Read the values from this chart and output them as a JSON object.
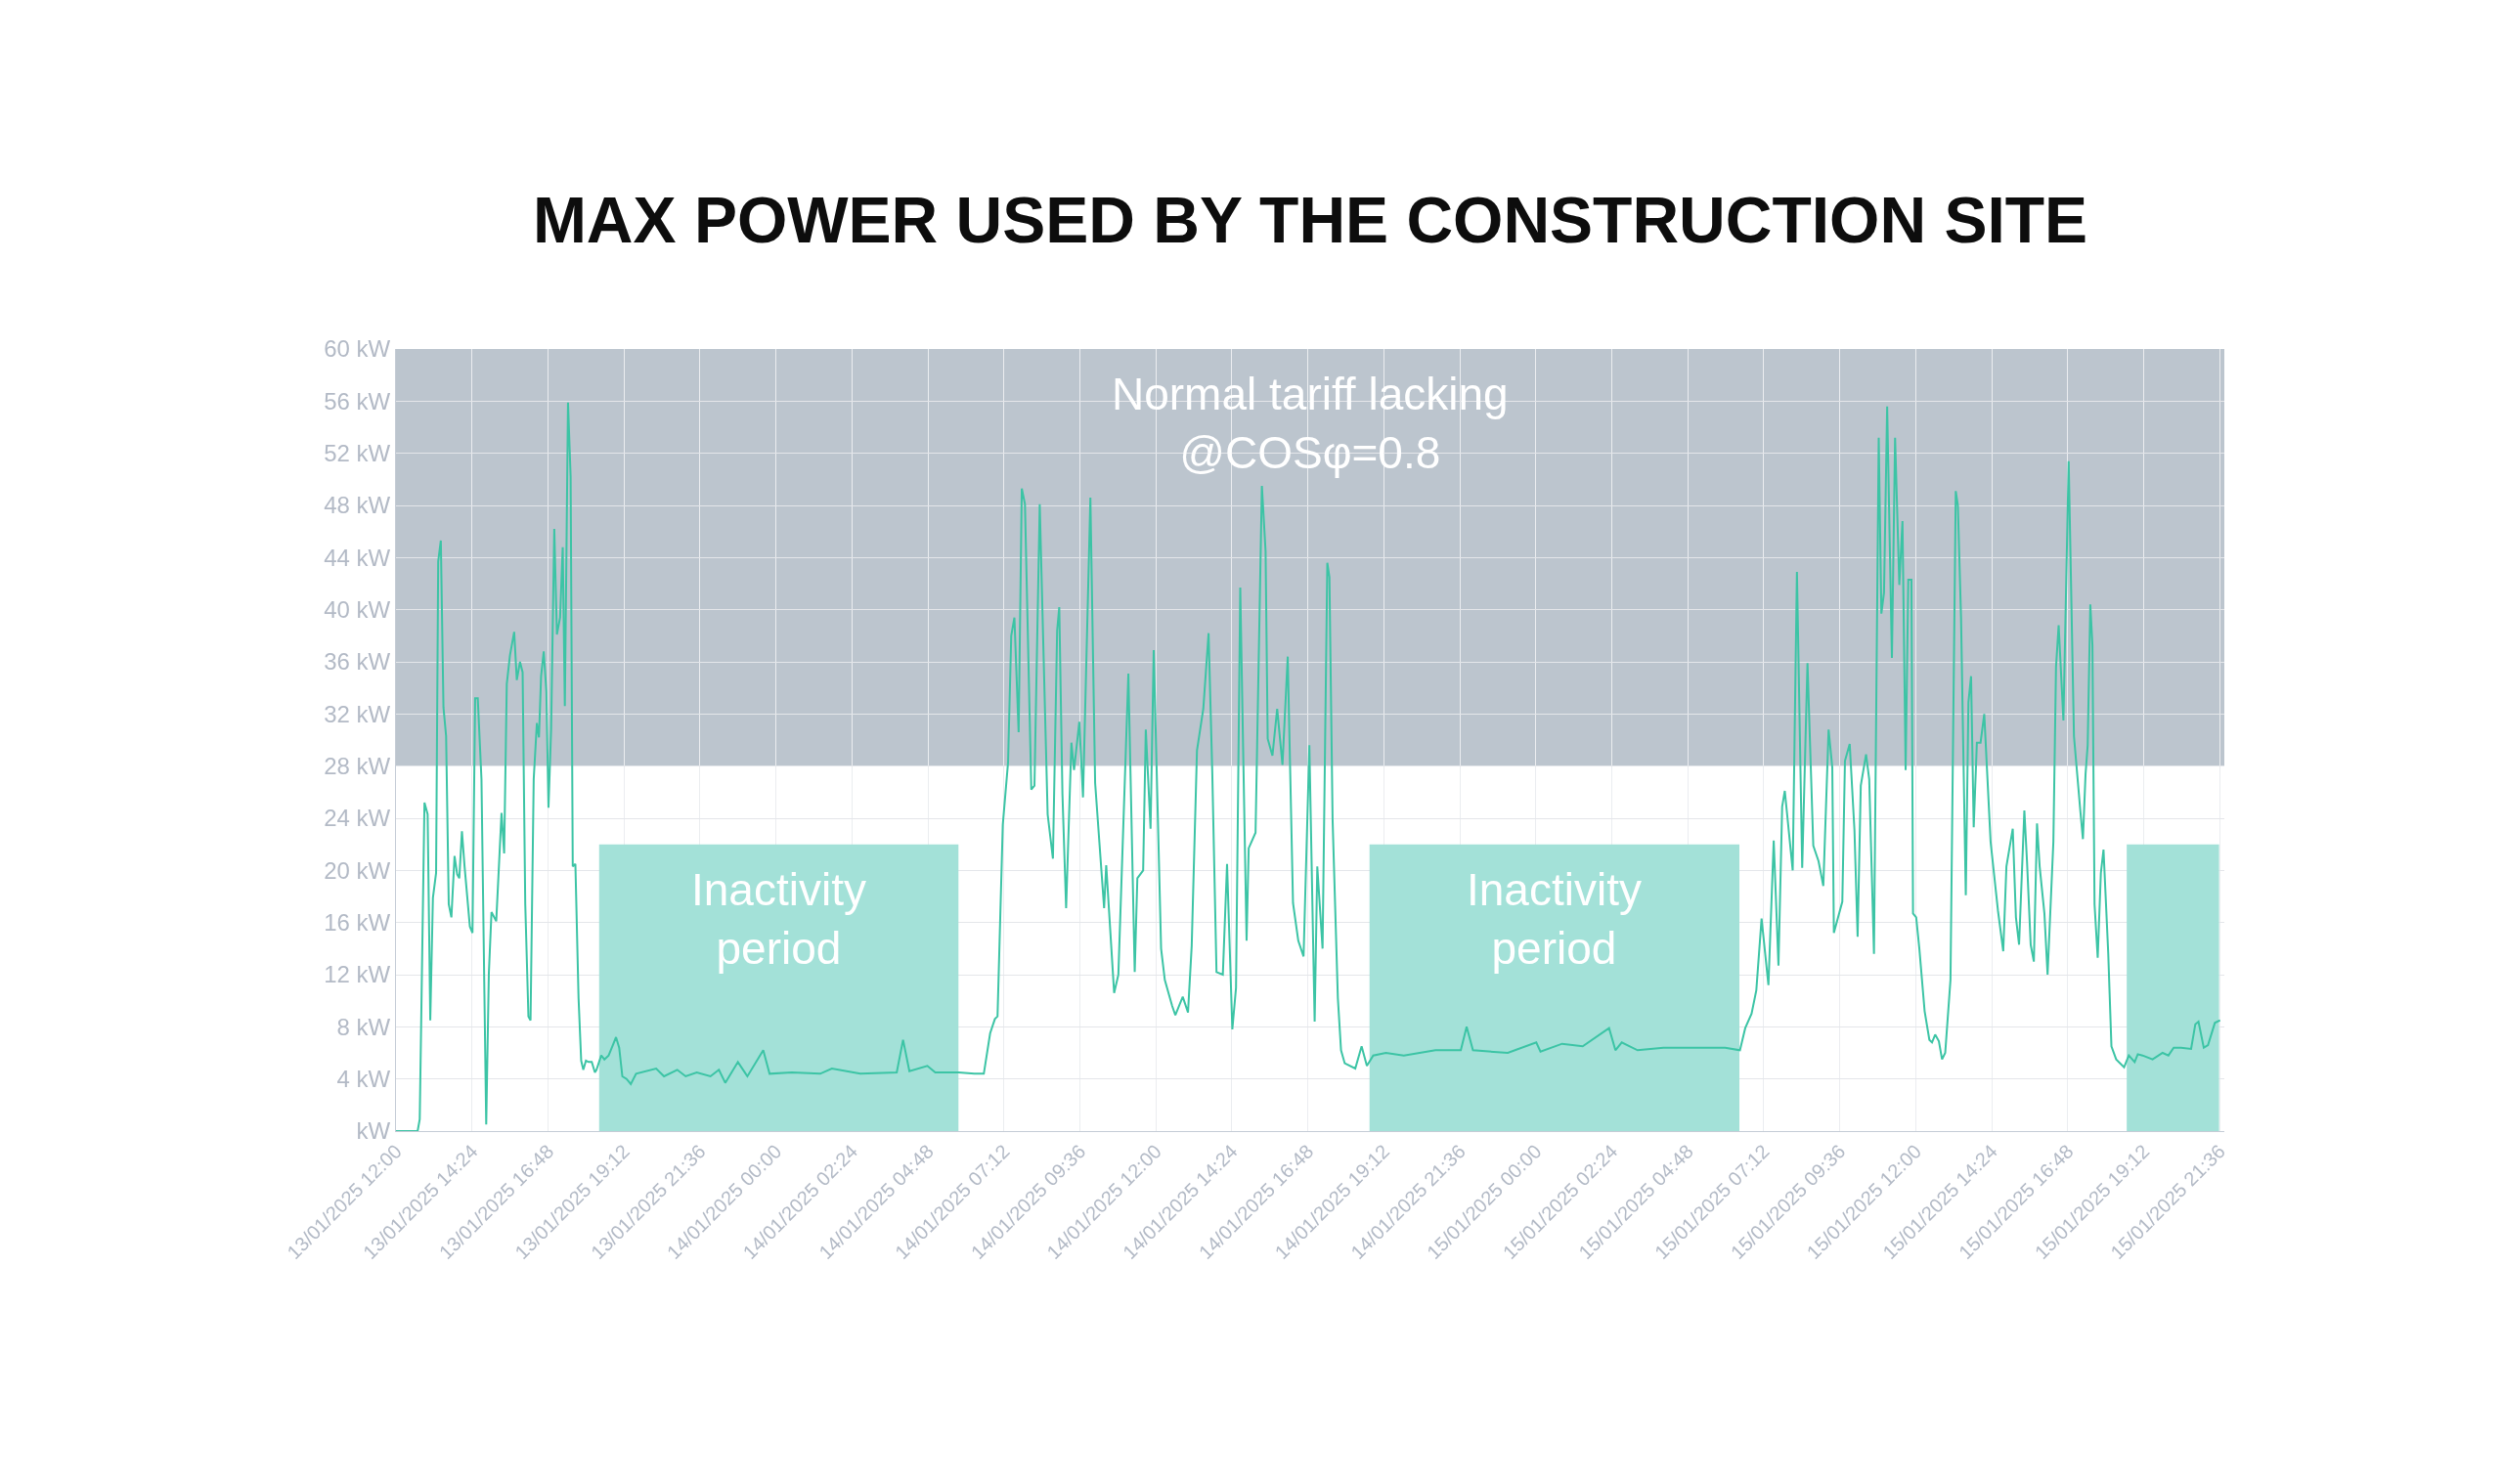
{
  "chart_data": {
    "type": "line",
    "title": "MAX POWER USED BY THE CONSTRUCTION SITE",
    "xlim": [
      "2025-01-13T12:00",
      "2025-01-15T21:45"
    ],
    "xticks": [
      {
        "value": "2025-01-13T12:00",
        "label": "13/01/2025 12:00"
      },
      {
        "value": "2025-01-13T14:24",
        "label": "13/01/2025 14:24"
      },
      {
        "value": "2025-01-13T16:48",
        "label": "13/01/2025 16:48"
      },
      {
        "value": "2025-01-13T19:12",
        "label": "13/01/2025 19:12"
      },
      {
        "value": "2025-01-13T21:36",
        "label": "13/01/2025 21:36"
      },
      {
        "value": "2025-01-14T00:00",
        "label": "14/01/2025 00:00"
      },
      {
        "value": "2025-01-14T02:24",
        "label": "14/01/2025 02:24"
      },
      {
        "value": "2025-01-14T04:48",
        "label": "14/01/2025 04:48"
      },
      {
        "value": "2025-01-14T07:12",
        "label": "14/01/2025 07:12"
      },
      {
        "value": "2025-01-14T09:36",
        "label": "14/01/2025 09:36"
      },
      {
        "value": "2025-01-14T12:00",
        "label": "14/01/2025 12:00"
      },
      {
        "value": "2025-01-14T14:24",
        "label": "14/01/2025 14:24"
      },
      {
        "value": "2025-01-14T16:48",
        "label": "14/01/2025 16:48"
      },
      {
        "value": "2025-01-14T19:12",
        "label": "14/01/2025 19:12"
      },
      {
        "value": "2025-01-14T21:36",
        "label": "14/01/2025 21:36"
      },
      {
        "value": "2025-01-15T00:00",
        "label": "15/01/2025 00:00"
      },
      {
        "value": "2025-01-15T02:24",
        "label": "15/01/2025 02:24"
      },
      {
        "value": "2025-01-15T04:48",
        "label": "15/01/2025 04:48"
      },
      {
        "value": "2025-01-15T07:12",
        "label": "15/01/2025 07:12"
      },
      {
        "value": "2025-01-15T09:36",
        "label": "15/01/2025 09:36"
      },
      {
        "value": "2025-01-15T12:00",
        "label": "15/01/2025 12:00"
      },
      {
        "value": "2025-01-15T14:24",
        "label": "15/01/2025 14:24"
      },
      {
        "value": "2025-01-15T16:48",
        "label": "15/01/2025 16:48"
      },
      {
        "value": "2025-01-15T19:12",
        "label": "15/01/2025 19:12"
      },
      {
        "value": "2025-01-15T21:36",
        "label": "15/01/2025 21:36"
      }
    ],
    "ylim": [
      0,
      60
    ],
    "yticks": [
      {
        "value": 0,
        "label": "kW"
      },
      {
        "value": 4,
        "label": "4 kW"
      },
      {
        "value": 8,
        "label": "8 kW"
      },
      {
        "value": 12,
        "label": "12 kW"
      },
      {
        "value": 16,
        "label": "16 kW"
      },
      {
        "value": 20,
        "label": "20 kW"
      },
      {
        "value": 24,
        "label": "24 kW"
      },
      {
        "value": 28,
        "label": "28 kW"
      },
      {
        "value": 32,
        "label": "32 kW"
      },
      {
        "value": 36,
        "label": "36 kW"
      },
      {
        "value": 40,
        "label": "40 kW"
      },
      {
        "value": 44,
        "label": "44 kW"
      },
      {
        "value": 48,
        "label": "48 kW"
      },
      {
        "value": 52,
        "label": "52 kW"
      },
      {
        "value": 56,
        "label": "56 kW"
      },
      {
        "value": 60,
        "label": "60 kW"
      }
    ],
    "grid": true,
    "marker": "none",
    "line_style": "solid",
    "bands": [
      {
        "axis": "y",
        "from": 28,
        "to": 60,
        "label": "Normal tariff lacking\n@COSφ=0.8",
        "color": "#bcc5ce"
      }
    ],
    "annotations": [
      "Inactivity\nperiod",
      "Inactivity\nperiod"
    ],
    "series": [
      {
        "type": "area",
        "color": "#a3e1d8",
        "x": [
          "2025-01-13T18:25",
          "2025-01-14T05:46"
        ],
        "values": [
          22,
          22
        ]
      },
      {
        "type": "area",
        "color": "#a3e1d8",
        "x": [
          "2025-01-14T18:45",
          "2025-01-15T06:26"
        ],
        "values": [
          22,
          22
        ]
      },
      {
        "type": "area",
        "color": "#a3e1d8",
        "x": [
          "2025-01-15T18:40",
          "2025-01-15T21:35"
        ],
        "values": [
          22,
          22
        ]
      },
      {
        "color": "#3cc4a5",
        "x": [
          "2025-01-13T12:00",
          "2025-01-13T12:41",
          "2025-01-13T12:45",
          "2025-01-13T12:54",
          "2025-01-13T13:00",
          "2025-01-13T13:05",
          "2025-01-13T13:10",
          "2025-01-13T13:16",
          "2025-01-13T13:20",
          "2025-01-13T13:25",
          "2025-01-13T13:30",
          "2025-01-13T13:35",
          "2025-01-13T13:40",
          "2025-01-13T13:45",
          "2025-01-13T13:51",
          "2025-01-13T13:56",
          "2025-01-13T14:00",
          "2025-01-13T14:05",
          "2025-01-13T14:10",
          "2025-01-13T14:20",
          "2025-01-13T14:25",
          "2025-01-13T14:30",
          "2025-01-13T14:35",
          "2025-01-13T14:42",
          "2025-01-13T14:51",
          "2025-01-13T14:56",
          "2025-01-13T15:01",
          "2025-01-13T15:10",
          "2025-01-13T15:20",
          "2025-01-13T15:25",
          "2025-01-13T15:30",
          "2025-01-13T15:36",
          "2025-01-13T15:44",
          "2025-01-13T15:49",
          "2025-01-13T15:55",
          "2025-01-13T16:00",
          "2025-01-13T16:05",
          "2025-01-13T16:11",
          "2025-01-13T16:15",
          "2025-01-13T16:21",
          "2025-01-13T16:27",
          "2025-01-13T16:31",
          "2025-01-13T16:35",
          "2025-01-13T16:40",
          "2025-01-13T16:45",
          "2025-01-13T16:49",
          "2025-01-13T16:54",
          "2025-01-13T17:00",
          "2025-01-13T17:05",
          "2025-01-13T17:11",
          "2025-01-13T17:16",
          "2025-01-13T17:20",
          "2025-01-13T17:26",
          "2025-01-13T17:31",
          "2025-01-13T17:35",
          "2025-01-13T17:40",
          "2025-01-13T17:46",
          "2025-01-13T17:51",
          "2025-01-13T17:55",
          "2025-01-13T18:00",
          "2025-01-13T18:05",
          "2025-01-13T18:11",
          "2025-01-13T18:17",
          "2025-01-13T18:20",
          "2025-01-13T18:29",
          "2025-01-13T18:35",
          "2025-01-13T18:43",
          "2025-01-13T18:50",
          "2025-01-13T18:57",
          "2025-01-13T19:03",
          "2025-01-13T19:09",
          "2025-01-13T19:17",
          "2025-01-13T19:25",
          "2025-01-13T19:35",
          "2025-01-13T20:13",
          "2025-01-13T20:28",
          "2025-01-13T20:53",
          "2025-01-13T21:09",
          "2025-01-13T21:30",
          "2025-01-13T21:56",
          "2025-01-13T22:12",
          "2025-01-13T22:24",
          "2025-01-13T22:48",
          "2025-01-13T23:06",
          "2025-01-13T23:36",
          "2025-01-13T23:48",
          "2025-01-14T00:30",
          "2025-01-14T01:24",
          "2025-01-14T01:46",
          "2025-01-14T02:40",
          "2025-01-14T03:49",
          "2025-01-14T04:01",
          "2025-01-14T04:13",
          "2025-01-14T04:47",
          "2025-01-14T05:02",
          "2025-01-14T05:46",
          "2025-01-14T06:16",
          "2025-01-14T06:34",
          "2025-01-14T06:46",
          "2025-01-14T06:55",
          "2025-01-14T07:00",
          "2025-01-14T07:10",
          "2025-01-14T07:20",
          "2025-01-14T07:26",
          "2025-01-14T07:32",
          "2025-01-14T07:40",
          "2025-01-14T07:46",
          "2025-01-14T07:52",
          "2025-01-14T08:04",
          "2025-01-14T08:10",
          "2025-01-14T08:20",
          "2025-01-14T08:35",
          "2025-01-14T08:45",
          "2025-01-14T08:53",
          "2025-01-14T08:57",
          "2025-01-14T09:03",
          "2025-01-14T09:10",
          "2025-01-14T09:20",
          "2025-01-14T09:25",
          "2025-01-14T09:35",
          "2025-01-14T09:42",
          "2025-01-14T09:56",
          "2025-01-14T10:05",
          "2025-01-14T10:22",
          "2025-01-14T10:26",
          "2025-01-14T10:41",
          "2025-01-14T10:49",
          "2025-01-14T11:08",
          "2025-01-14T11:20",
          "2025-01-14T11:25",
          "2025-01-14T11:36",
          "2025-01-14T11:41",
          "2025-01-14T11:50",
          "2025-01-14T11:56",
          "2025-01-14T12:10",
          "2025-01-14T12:17",
          "2025-01-14T12:31",
          "2025-01-14T12:37",
          "2025-01-14T12:51",
          "2025-01-14T13:01",
          "2025-01-14T13:08",
          "2025-01-14T13:18",
          "2025-01-14T13:30",
          "2025-01-14T13:40",
          "2025-01-14T13:47",
          "2025-01-14T13:55",
          "2025-01-14T14:07",
          "2025-01-14T14:15",
          "2025-01-14T14:25",
          "2025-01-14T14:32",
          "2025-01-14T14:40",
          "2025-01-14T14:52",
          "2025-01-14T14:56",
          "2025-01-14T15:09",
          "2025-01-14T15:21",
          "2025-01-14T15:28",
          "2025-01-14T15:32",
          "2025-01-14T15:41",
          "2025-01-14T15:50",
          "2025-01-14T16:00",
          "2025-01-14T16:10",
          "2025-01-14T16:20",
          "2025-01-14T16:30",
          "2025-01-14T16:40",
          "2025-01-14T16:51",
          "2025-01-14T17:01",
          "2025-01-14T17:06",
          "2025-01-14T17:16",
          "2025-01-14T17:25",
          "2025-01-14T17:29",
          "2025-01-14T17:35",
          "2025-01-14T17:45",
          "2025-01-14T17:51",
          "2025-01-14T17:58",
          "2025-01-14T18:18",
          "2025-01-14T18:30",
          "2025-01-14T18:40",
          "2025-01-14T18:52",
          "2025-01-14T19:16",
          "2025-01-14T19:50",
          "2025-01-14T20:50",
          "2025-01-14T21:38",
          "2025-01-14T21:49",
          "2025-01-14T22:01",
          "2025-01-14T23:07",
          "2025-01-15T00:01",
          "2025-01-15T00:09",
          "2025-01-15T00:50",
          "2025-01-15T01:29",
          "2025-01-15T02:19",
          "2025-01-15T02:31",
          "2025-01-15T02:43",
          "2025-01-15T03:13",
          "2025-01-15T04:02",
          "2025-01-15T05:01",
          "2025-01-15T05:59",
          "2025-01-15T06:27",
          "2025-01-15T06:37",
          "2025-01-15T06:49",
          "2025-01-15T06:58",
          "2025-01-15T07:08",
          "2025-01-15T07:21",
          "2025-01-15T07:31",
          "2025-01-15T07:40",
          "2025-01-15T07:47",
          "2025-01-15T07:52",
          "2025-01-15T08:07",
          "2025-01-15T08:15",
          "2025-01-15T08:25",
          "2025-01-15T08:35",
          "2025-01-15T08:46",
          "2025-01-15T08:56",
          "2025-01-15T09:05",
          "2025-01-15T09:15",
          "2025-01-15T09:22",
          "2025-01-15T09:25",
          "2025-01-15T09:41",
          "2025-01-15T09:46",
          "2025-01-15T09:55",
          "2025-01-15T10:04",
          "2025-01-15T10:10",
          "2025-01-15T10:16",
          "2025-01-15T10:26",
          "2025-01-15T10:32",
          "2025-01-15T10:41",
          "2025-01-15T10:50",
          "2025-01-15T10:55",
          "2025-01-15T11:00",
          "2025-01-15T11:06",
          "2025-01-15T11:15",
          "2025-01-15T11:21",
          "2025-01-15T11:29",
          "2025-01-15T11:35",
          "2025-01-15T11:41",
          "2025-01-15T11:46",
          "2025-01-15T11:52",
          "2025-01-15T11:55",
          "2025-01-15T12:01",
          "2025-01-15T12:07",
          "2025-01-15T12:17",
          "2025-01-15T12:26",
          "2025-01-15T12:31",
          "2025-01-15T12:37",
          "2025-01-15T12:44",
          "2025-01-15T12:50",
          "2025-01-15T12:56",
          "2025-01-15T13:06",
          "2025-01-15T13:16",
          "2025-01-15T13:20",
          "2025-01-15T13:26",
          "2025-01-15T13:35",
          "2025-01-15T13:40",
          "2025-01-15T13:45",
          "2025-01-15T13:50",
          "2025-01-15T13:56",
          "2025-01-15T14:03",
          "2025-01-15T14:10",
          "2025-01-15T14:22",
          "2025-01-15T14:36",
          "2025-01-15T14:46",
          "2025-01-15T14:52",
          "2025-01-15T15:04",
          "2025-01-15T15:10",
          "2025-01-15T15:16",
          "2025-01-15T15:26",
          "2025-01-15T15:31",
          "2025-01-15T15:38",
          "2025-01-15T15:44",
          "2025-01-15T15:50",
          "2025-01-15T15:55",
          "2025-01-15T16:04",
          "2025-01-15T16:10",
          "2025-01-15T16:21",
          "2025-01-15T16:26",
          "2025-01-15T16:31",
          "2025-01-15T16:40",
          "2025-01-15T16:50",
          "2025-01-15T17:00",
          "2025-01-15T17:12",
          "2025-01-15T17:17",
          "2025-01-15T17:22",
          "2025-01-15T17:26",
          "2025-01-15T17:31",
          "2025-01-15T17:35",
          "2025-01-15T17:39",
          "2025-01-15T17:45",
          "2025-01-15T17:51",
          "2025-01-15T17:56",
          "2025-01-15T18:05",
          "2025-01-15T18:11",
          "2025-01-15T18:20",
          "2025-01-15T18:35",
          "2025-01-15T18:44",
          "2025-01-15T18:55",
          "2025-01-15T19:01",
          "2025-01-15T19:10",
          "2025-01-15T19:29",
          "2025-01-15T19:48",
          "2025-01-15T19:59",
          "2025-01-15T20:09",
          "2025-01-15T20:23",
          "2025-01-15T20:42",
          "2025-01-15T20:50",
          "2025-01-15T20:56",
          "2025-01-15T21:06",
          "2025-01-15T21:14",
          "2025-01-15T21:27",
          "2025-01-15T21:37"
        ],
        "values": [
          0,
          0,
          0.9,
          25.2,
          24.3,
          8.5,
          17.9,
          19.8,
          43.7,
          45.3,
          32.5,
          30.3,
          17.4,
          16.4,
          21.1,
          19.7,
          19.4,
          23.0,
          20.3,
          15.7,
          15.2,
          33.2,
          33.2,
          27.0,
          0.5,
          12.1,
          16.8,
          16.1,
          24.4,
          21.3,
          34.3,
          36.5,
          38.3,
          34.6,
          36.0,
          35.2,
          17.4,
          8.8,
          8.5,
          27.0,
          31.3,
          30.2,
          34.9,
          36.8,
          33.7,
          24.8,
          30.8,
          46.2,
          38.1,
          39.4,
          44.8,
          32.6,
          55.9,
          50.2,
          20.3,
          20.5,
          10.2,
          5.4,
          4.7,
          5.4,
          5.3,
          5.3,
          4.5,
          4.7,
          5.8,
          5.5,
          5.8,
          6.5,
          7.2,
          6.4,
          4.2,
          4.0,
          3.6,
          4.4,
          4.8,
          4.2,
          4.7,
          4.2,
          4.5,
          4.2,
          4.7,
          3.7,
          5.3,
          4.2,
          6.2,
          4.4,
          4.5,
          4.4,
          4.8,
          4.4,
          4.5,
          7.0,
          4.6,
          5.0,
          4.5,
          4.5,
          4.4,
          4.4,
          7.5,
          8.6,
          8.8,
          23.5,
          28.3,
          38.0,
          39.4,
          30.6,
          49.3,
          48.1,
          26.2,
          26.5,
          48.1,
          24.3,
          20.9,
          38.4,
          40.2,
          25.9,
          17.1,
          29.8,
          27.7,
          31.4,
          25.6,
          48.6,
          26.7,
          17.1,
          20.4,
          10.6,
          12.0,
          35.1,
          12.2,
          19.4,
          20.0,
          30.8,
          23.2,
          36.9,
          14.0,
          11.6,
          9.6,
          8.9,
          10.3,
          9.1,
          14.2,
          29.2,
          32.4,
          38.2,
          27.5,
          12.2,
          12.0,
          20.5,
          7.8,
          11.0,
          41.7,
          14.6,
          21.7,
          22.9,
          49.5,
          44.5,
          30.1,
          28.8,
          32.4,
          28.1,
          36.4,
          17.5,
          14.6,
          13.4,
          29.6,
          8.4,
          20.3,
          14.0,
          43.6,
          42.5,
          23.9,
          10.2,
          6.2,
          5.2,
          4.8,
          6.5,
          5.0,
          5.8,
          6.0,
          5.8,
          6.2,
          6.2,
          8.0,
          6.2,
          6.0,
          6.8,
          6.1,
          6.7,
          6.5,
          7.9,
          6.2,
          6.8,
          6.2,
          6.4,
          6.4,
          6.4,
          6.2,
          7.9,
          9.0,
          10.8,
          16.3,
          11.2,
          22.3,
          12.7,
          24.9,
          26.1,
          20.0,
          42.9,
          20.2,
          35.9,
          21.9,
          20.7,
          18.8,
          30.8,
          27.9,
          15.2,
          17.6,
          28.4,
          29.7,
          23.1,
          14.9,
          26.5,
          28.9,
          27.0,
          13.6,
          53.2,
          39.7,
          41.3,
          55.6,
          36.3,
          53.2,
          41.9,
          46.8,
          27.7,
          42.3,
          42.3,
          16.7,
          16.4,
          14.0,
          9.2,
          7.0,
          6.8,
          7.4,
          6.9,
          5.5,
          6.0,
          11.6,
          49.1,
          48.0,
          39.4,
          18.1,
          32.9,
          34.9,
          23.3,
          29.8,
          29.8,
          32.0,
          22.2,
          16.9,
          13.8,
          20.3,
          23.2,
          16.4,
          14.3,
          24.6,
          20.7,
          14.3,
          13.0,
          23.6,
          20.3,
          16.7,
          12.0,
          22.2,
          35.6,
          38.8,
          31.5,
          51.4,
          30.3,
          24.6,
          22.4,
          27.4,
          29.6,
          40.4,
          37.3,
          17.4,
          13.3,
          19.8,
          21.6,
          13.6,
          6.5,
          5.5,
          4.9,
          5.8,
          5.3,
          5.9,
          5.8,
          5.5,
          6.0,
          5.8,
          6.4,
          6.4,
          6.3,
          8.2,
          8.4,
          6.4,
          6.6,
          8.3,
          8.5
        ]
      }
    ]
  }
}
